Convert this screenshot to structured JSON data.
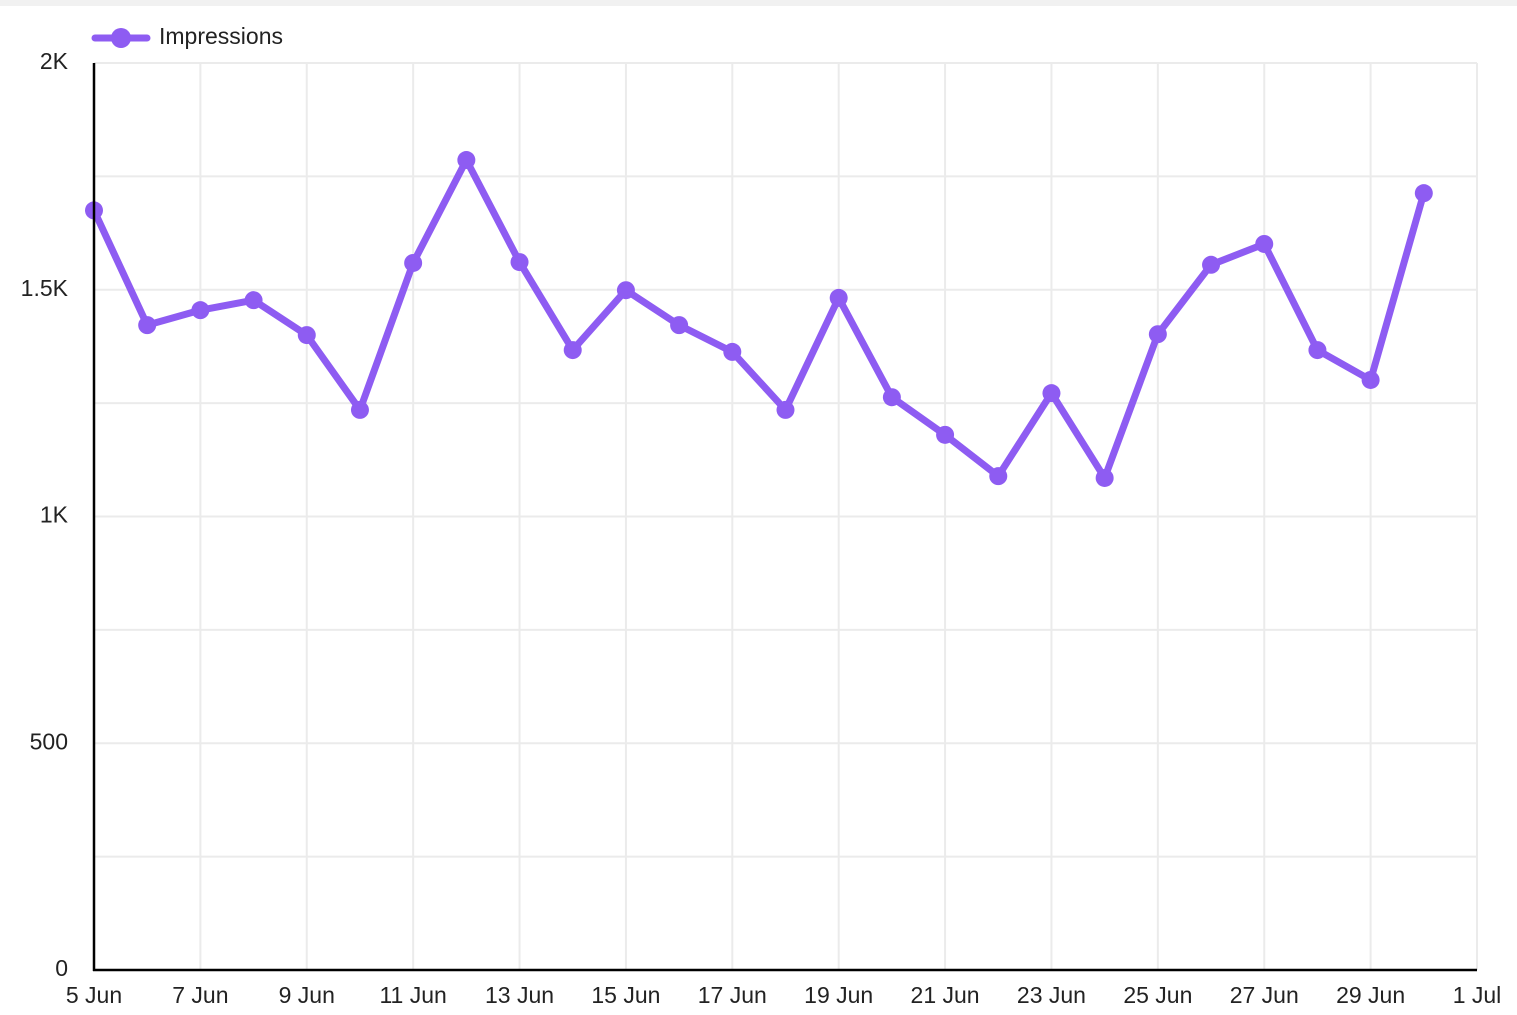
{
  "chart_data": {
    "type": "line",
    "x": [
      "5 Jun",
      "6 Jun",
      "7 Jun",
      "8 Jun",
      "9 Jun",
      "10 Jun",
      "11 Jun",
      "12 Jun",
      "13 Jun",
      "14 Jun",
      "15 Jun",
      "16 Jun",
      "17 Jun",
      "18 Jun",
      "19 Jun",
      "20 Jun",
      "21 Jun",
      "22 Jun",
      "23 Jun",
      "24 Jun",
      "25 Jun",
      "26 Jun",
      "27 Jun",
      "28 Jun",
      "29 Jun",
      "30 Jun"
    ],
    "series": [
      {
        "name": "Impressions",
        "color": "#8e5cf2",
        "values": [
          1675,
          1422,
          1455,
          1477,
          1400,
          1235,
          1559,
          1786,
          1561,
          1367,
          1499,
          1422,
          1363,
          1235,
          1482,
          1263,
          1180,
          1089,
          1272,
          1085,
          1402,
          1555,
          1601,
          1367,
          1301,
          1713
        ]
      }
    ],
    "xlim": [
      "5 Jun",
      "1 Jul"
    ],
    "xticks": [
      "5 Jun",
      "7 Jun",
      "9 Jun",
      "11 Jun",
      "13 Jun",
      "15 Jun",
      "17 Jun",
      "19 Jun",
      "21 Jun",
      "23 Jun",
      "25 Jun",
      "27 Jun",
      "29 Jun",
      "1 Jul"
    ],
    "ylim": [
      0,
      2000
    ],
    "yticks": [
      0,
      500,
      {
        "value": 1000,
        "label": "1K"
      },
      {
        "value": 1500,
        "label": "1.5K"
      },
      {
        "value": 2000,
        "label": "2K"
      }
    ],
    "y_minor_ticks": [
      250,
      750,
      1250,
      1750
    ],
    "grid": true,
    "legend": "top-left"
  }
}
